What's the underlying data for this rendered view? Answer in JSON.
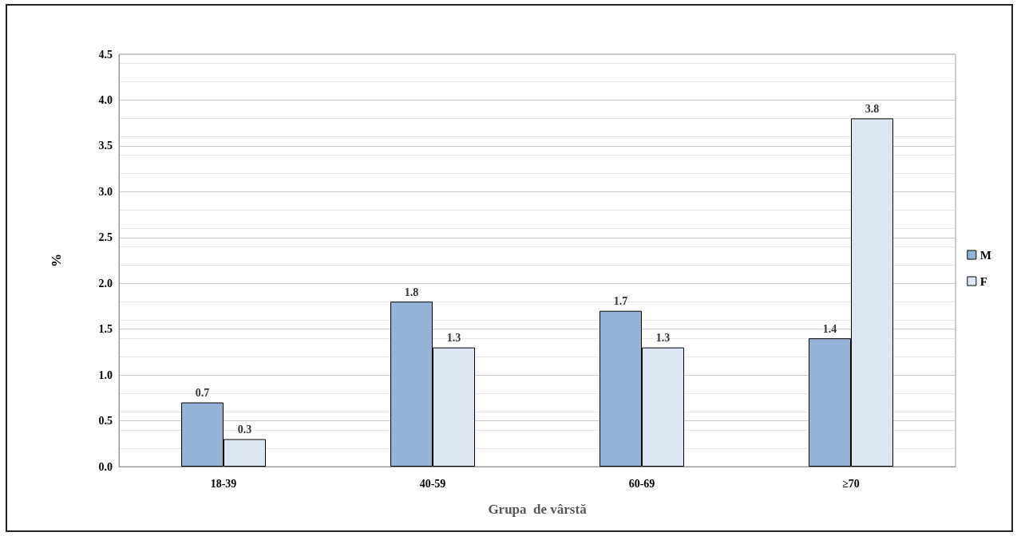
{
  "chart_data": {
    "type": "bar",
    "xlabel": "Grupa  de vârstă",
    "ylabel": "%",
    "categories": [
      "18-39",
      "40-59",
      "60-69",
      "≥70"
    ],
    "series": [
      {
        "name": "M",
        "color": "#95b3d7",
        "values": [
          0.7,
          1.8,
          1.7,
          1.4
        ]
      },
      {
        "name": "F",
        "color": "#dce6f2",
        "values": [
          0.3,
          1.3,
          1.3,
          3.8
        ]
      }
    ],
    "ylim": [
      0,
      4.5
    ],
    "yticks": [
      {
        "value": 0,
        "label": "0.0"
      },
      {
        "value": 0.5,
        "label": "0.5"
      },
      {
        "value": 1,
        "label": "1.0"
      },
      {
        "value": 1.5,
        "label": "1.5"
      },
      {
        "value": 2,
        "label": "2.0"
      },
      {
        "value": 2.5,
        "label": "2.5"
      },
      {
        "value": 3,
        "label": "3.0"
      },
      {
        "value": 3.5,
        "label": "3.5"
      },
      {
        "value": 4,
        "label": "4.0"
      },
      {
        "value": 4.5,
        "label": "4.5"
      }
    ],
    "grid": "y",
    "legend": "right",
    "data_labels": true
  }
}
